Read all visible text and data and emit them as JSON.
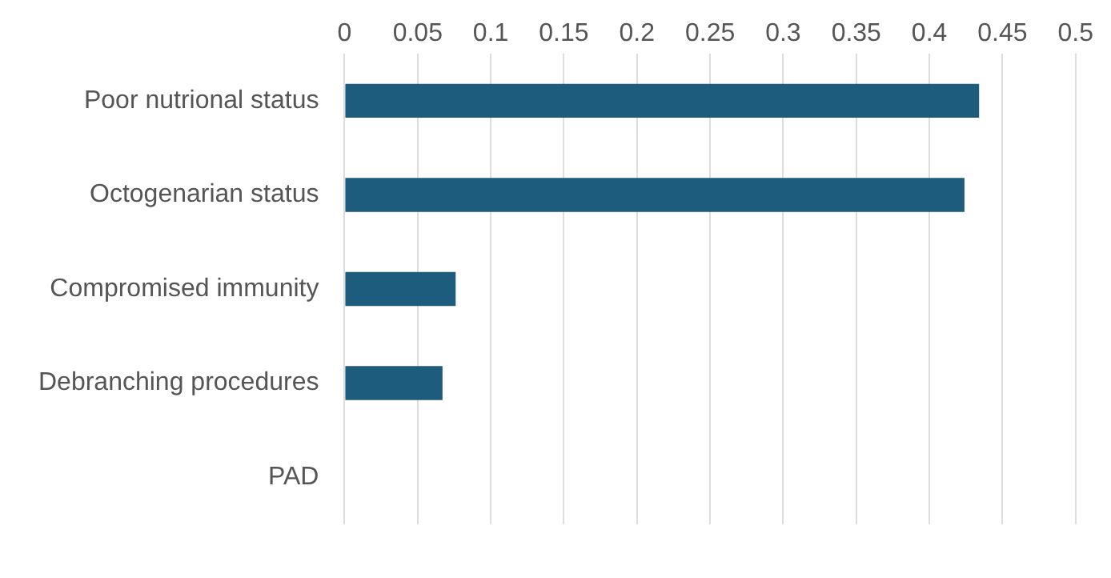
{
  "chart_data": {
    "type": "bar",
    "orientation": "horizontal",
    "categories": [
      "Poor nutrional status",
      "Octogenarian status",
      "Compromised immunity",
      "Debranching procedures",
      "PAD"
    ],
    "values": [
      0.434,
      0.424,
      0.076,
      0.067,
      0
    ],
    "color": "#1d5c7c",
    "xlim": [
      0,
      0.5
    ],
    "xticks": [
      0,
      0.05,
      0.1,
      0.15,
      0.2,
      0.25,
      0.3,
      0.35,
      0.4,
      0.45,
      0.5
    ],
    "grid": "x",
    "legend": false
  }
}
